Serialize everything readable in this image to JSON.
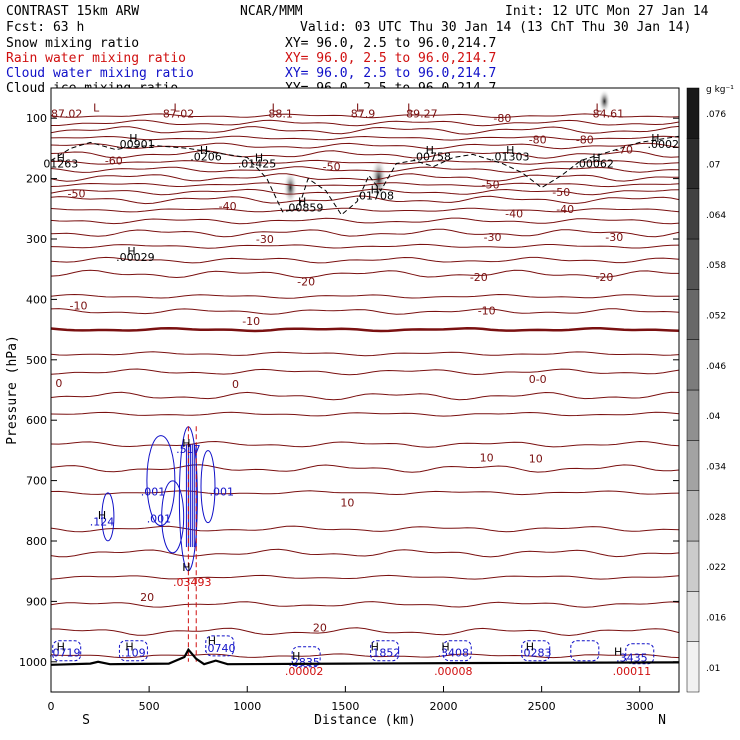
{
  "header": {
    "line1_left": "CONTRAST 15km ARW",
    "line1_mid": "NCAR/MMM",
    "line1_right": "Init: 12 UTC Mon 27 Jan 14",
    "line2_left": "Fcst:    63 h",
    "line2_right": "Valid: 03 UTC Thu 30 Jan 14 (13 ChT Thu 30 Jan 14)"
  },
  "fields": [
    {
      "name": "Snow mixing ratio",
      "xy": "XY=  96.0,  2.5 to  96.0,214.7",
      "color": "#000000"
    },
    {
      "name": "Rain water mixing ratio",
      "xy": "XY=  96.0,  2.5 to  96.0,214.7",
      "color": "#d01010"
    },
    {
      "name": "Cloud water mixing ratio",
      "xy": "XY=  96.0,  2.5 to  96.0,214.7",
      "color": "#1010c8"
    },
    {
      "name": "Cloud ice mixing ratio",
      "xy": "XY=  96.0,  2.5 to  96.0,214.7",
      "color": "#000000"
    }
  ],
  "chart_data": {
    "type": "contour",
    "xlabel": "Distance (km)",
    "ylabel": "Pressure (hPa)",
    "xlim": [
      0,
      3200
    ],
    "ylim": [
      1050,
      50
    ],
    "x_ticks": [
      0,
      500,
      1000,
      1500,
      2000,
      2500,
      3000
    ],
    "y_ticks": [
      100,
      200,
      300,
      400,
      500,
      600,
      700,
      800,
      900,
      1000
    ],
    "end_labels": {
      "left": "S",
      "right": "N"
    },
    "colorbar": {
      "units": "g kg⁻¹",
      "labels": [
        ".01",
        ".016",
        ".022",
        ".028",
        ".034",
        ".04",
        ".046",
        ".052",
        ".058",
        ".064",
        ".07",
        ".076"
      ]
    },
    "temperature_contours": {
      "color": "#7a1010",
      "levels": [
        {
          "label": "-80",
          "p": 120
        },
        {
          "label": "-70",
          "p": 160
        },
        {
          "label": "-60",
          "p": 185
        },
        {
          "label": "-50",
          "p": 220
        },
        {
          "label": "-40",
          "p": 252
        },
        {
          "label": "-30",
          "p": 290
        },
        {
          "label": "-20",
          "p": 335
        },
        {
          "label": "-10",
          "p": 395
        },
        {
          "label": "0",
          "p": 450
        },
        {
          "label": "10",
          "p": 640
        },
        {
          "label": "20",
          "p": 820
        }
      ],
      "labels": [
        {
          "text": "-80",
          "x": 2300,
          "p": 100
        },
        {
          "text": "-80",
          "x": 2720,
          "p": 135
        },
        {
          "text": "-80",
          "x": 2480,
          "p": 135
        },
        {
          "text": "-70",
          "x": 2920,
          "p": 152
        },
        {
          "text": "-60",
          "x": 320,
          "p": 170
        },
        {
          "text": "-50",
          "x": 130,
          "p": 225
        },
        {
          "text": "-50",
          "x": 1430,
          "p": 180
        },
        {
          "text": "-50",
          "x": 2240,
          "p": 210
        },
        {
          "text": "-50",
          "x": 2600,
          "p": 222
        },
        {
          "text": "-40",
          "x": 900,
          "p": 245
        },
        {
          "text": "-40",
          "x": 2620,
          "p": 250
        },
        {
          "text": "-40",
          "x": 2360,
          "p": 258
        },
        {
          "text": "-30",
          "x": 1090,
          "p": 300
        },
        {
          "text": "-30",
          "x": 2250,
          "p": 297
        },
        {
          "text": "-30",
          "x": 2870,
          "p": 297
        },
        {
          "text": "-20",
          "x": 1300,
          "p": 370
        },
        {
          "text": "-20",
          "x": 2180,
          "p": 363
        },
        {
          "text": "-20",
          "x": 2820,
          "p": 363
        },
        {
          "text": "-10",
          "x": 140,
          "p": 410
        },
        {
          "text": "-10",
          "x": 1020,
          "p": 436
        },
        {
          "text": "-10",
          "x": 2220,
          "p": 418
        },
        {
          "text": "0",
          "x": 40,
          "p": 538
        },
        {
          "text": "0",
          "x": 940,
          "p": 540
        },
        {
          "text": "0-0",
          "x": 2480,
          "p": 532
        },
        {
          "text": "10",
          "x": 2220,
          "p": 662
        },
        {
          "text": "10",
          "x": 2470,
          "p": 663
        },
        {
          "text": "10",
          "x": 1510,
          "p": 736
        },
        {
          "text": "20",
          "x": 490,
          "p": 893
        },
        {
          "text": "20",
          "x": 1370,
          "p": 943
        }
      ]
    },
    "maxima_labels": [
      {
        "text": "87.02",
        "x": 80,
        "p": 92,
        "color": "#7a1010"
      },
      {
        "text": "87.02",
        "x": 650,
        "p": 92,
        "color": "#7a1010"
      },
      {
        "text": "88.1",
        "x": 1170,
        "p": 92,
        "color": "#7a1010"
      },
      {
        "text": "87.9",
        "x": 1590,
        "p": 92,
        "color": "#7a1010"
      },
      {
        "text": "89.27",
        "x": 1890,
        "p": 92,
        "color": "#7a1010"
      },
      {
        "text": "84.61",
        "x": 2840,
        "p": 92,
        "color": "#7a1010"
      },
      {
        "text": ".00901",
        "x": 430,
        "p": 143,
        "color": "#000000"
      },
      {
        "text": ".0206",
        "x": 790,
        "p": 163,
        "color": "#000000"
      },
      {
        "text": ".01425",
        "x": 1050,
        "p": 175,
        "color": "#000000"
      },
      {
        "text": ".00758",
        "x": 1940,
        "p": 163,
        "color": "#000000"
      },
      {
        "text": ".01303",
        "x": 2340,
        "p": 163,
        "color": "#000000"
      },
      {
        "text": ".00062",
        "x": 2770,
        "p": 175,
        "color": "#000000"
      },
      {
        "text": ".0002",
        "x": 3120,
        "p": 143,
        "color": "#000000"
      },
      {
        "text": "01263",
        "x": 50,
        "p": 175,
        "color": "#000000"
      },
      {
        "text": ".00859",
        "x": 1290,
        "p": 248,
        "color": "#000000"
      },
      {
        "text": ".01708",
        "x": 1650,
        "p": 228,
        "color": "#000000"
      },
      {
        "text": ".00029",
        "x": 430,
        "p": 330,
        "color": "#000000"
      },
      {
        "text": ".517",
        "x": 700,
        "p": 648,
        "color": "#1010c8"
      },
      {
        "text": ".001",
        "x": 520,
        "p": 718,
        "color": "#1010c8"
      },
      {
        "text": ".001",
        "x": 870,
        "p": 718,
        "color": "#1010c8"
      },
      {
        "text": ".001",
        "x": 550,
        "p": 763,
        "color": "#1010c8"
      },
      {
        "text": ".124",
        "x": 260,
        "p": 768,
        "color": "#1010c8"
      },
      {
        "text": ".03493",
        "x": 720,
        "p": 868,
        "color": "#d01010"
      },
      {
        "text": ".0719",
        "x": 70,
        "p": 985,
        "color": "#1010c8"
      },
      {
        "text": ".109",
        "x": 420,
        "p": 985,
        "color": "#1010c8"
      },
      {
        "text": ".0740",
        "x": 860,
        "p": 977,
        "color": "#1010c8"
      },
      {
        "text": ".2835",
        "x": 1290,
        "p": 1000,
        "color": "#1010c8"
      },
      {
        "text": ".1852",
        "x": 1700,
        "p": 985,
        "color": "#1010c8"
      },
      {
        "text": ".3408",
        "x": 2050,
        "p": 985,
        "color": "#1010c8"
      },
      {
        "text": ".0283",
        "x": 2470,
        "p": 985,
        "color": "#1010c8"
      },
      {
        "text": ".3435",
        "x": 2960,
        "p": 993,
        "color": "#1010c8"
      },
      {
        "text": ".00002",
        "x": 1290,
        "p": 1015,
        "color": "#d01010"
      },
      {
        "text": ".00008",
        "x": 2050,
        "p": 1015,
        "color": "#d01010"
      },
      {
        "text": ".00011",
        "x": 2960,
        "p": 1015,
        "color": "#d01010"
      }
    ],
    "h_markers": [
      {
        "x": 50,
        "p": 165
      },
      {
        "x": 420,
        "p": 133
      },
      {
        "x": 780,
        "p": 153
      },
      {
        "x": 1060,
        "p": 165
      },
      {
        "x": 1280,
        "p": 238
      },
      {
        "x": 1650,
        "p": 218
      },
      {
        "x": 1930,
        "p": 153
      },
      {
        "x": 2340,
        "p": 153
      },
      {
        "x": 2780,
        "p": 165
      },
      {
        "x": 3080,
        "p": 133
      },
      {
        "x": 410,
        "p": 320
      },
      {
        "x": 690,
        "p": 638
      },
      {
        "x": 260,
        "p": 757
      },
      {
        "x": 690,
        "p": 843
      },
      {
        "x": 50,
        "p": 975
      },
      {
        "x": 400,
        "p": 975
      },
      {
        "x": 820,
        "p": 965
      },
      {
        "x": 1650,
        "p": 975
      },
      {
        "x": 2010,
        "p": 975
      },
      {
        "x": 2440,
        "p": 975
      },
      {
        "x": 2890,
        "p": 983
      },
      {
        "x": 1250,
        "p": 990
      }
    ],
    "l_markers": [
      {
        "x": 640,
        "p": 82
      },
      {
        "x": 1140,
        "p": 82
      },
      {
        "x": 1570,
        "p": 82
      },
      {
        "x": 1830,
        "p": 82
      },
      {
        "x": 2790,
        "p": 82
      },
      {
        "x": 230,
        "p": 82
      }
    ]
  }
}
